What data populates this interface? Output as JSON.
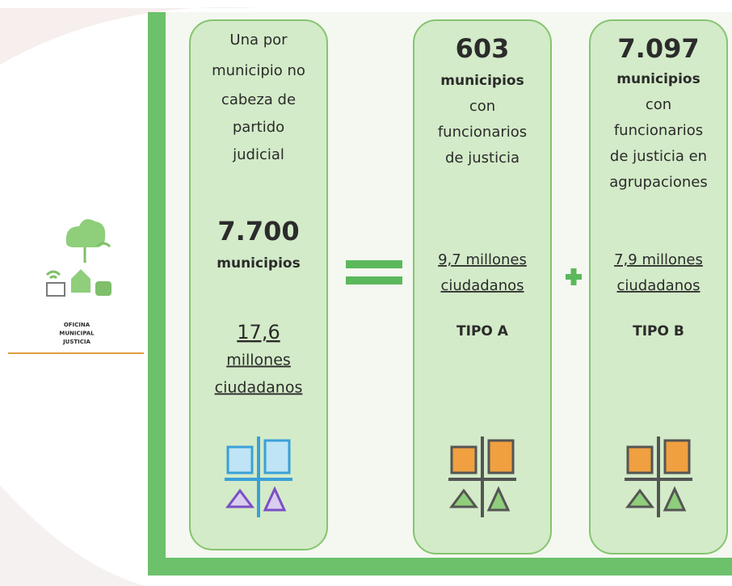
{
  "logo": {
    "lines": [
      "OFICINA",
      "MUNICIPAL",
      "JUSTICIA"
    ]
  },
  "cards": [
    {
      "description": [
        "Una por",
        "municipio no",
        "cabeza de",
        "partido",
        "judicial"
      ],
      "count": "7.700",
      "unit": "municipios",
      "population": [
        "17,6",
        "millones",
        "ciudadanos"
      ]
    },
    {
      "count": "603",
      "unit": "municipios",
      "description": [
        "con",
        "funcionarios",
        "de justicia"
      ],
      "population": [
        "9,7 millones",
        "ciudadanos"
      ],
      "type": "TIPO A"
    },
    {
      "count": "7.097",
      "unit": "municipios",
      "description": [
        "con",
        "funcionarios",
        "de justicia en",
        "agrupaciones"
      ],
      "population": [
        "7,9 millones",
        "ciudadanos"
      ],
      "type": "TIPO B"
    }
  ]
}
